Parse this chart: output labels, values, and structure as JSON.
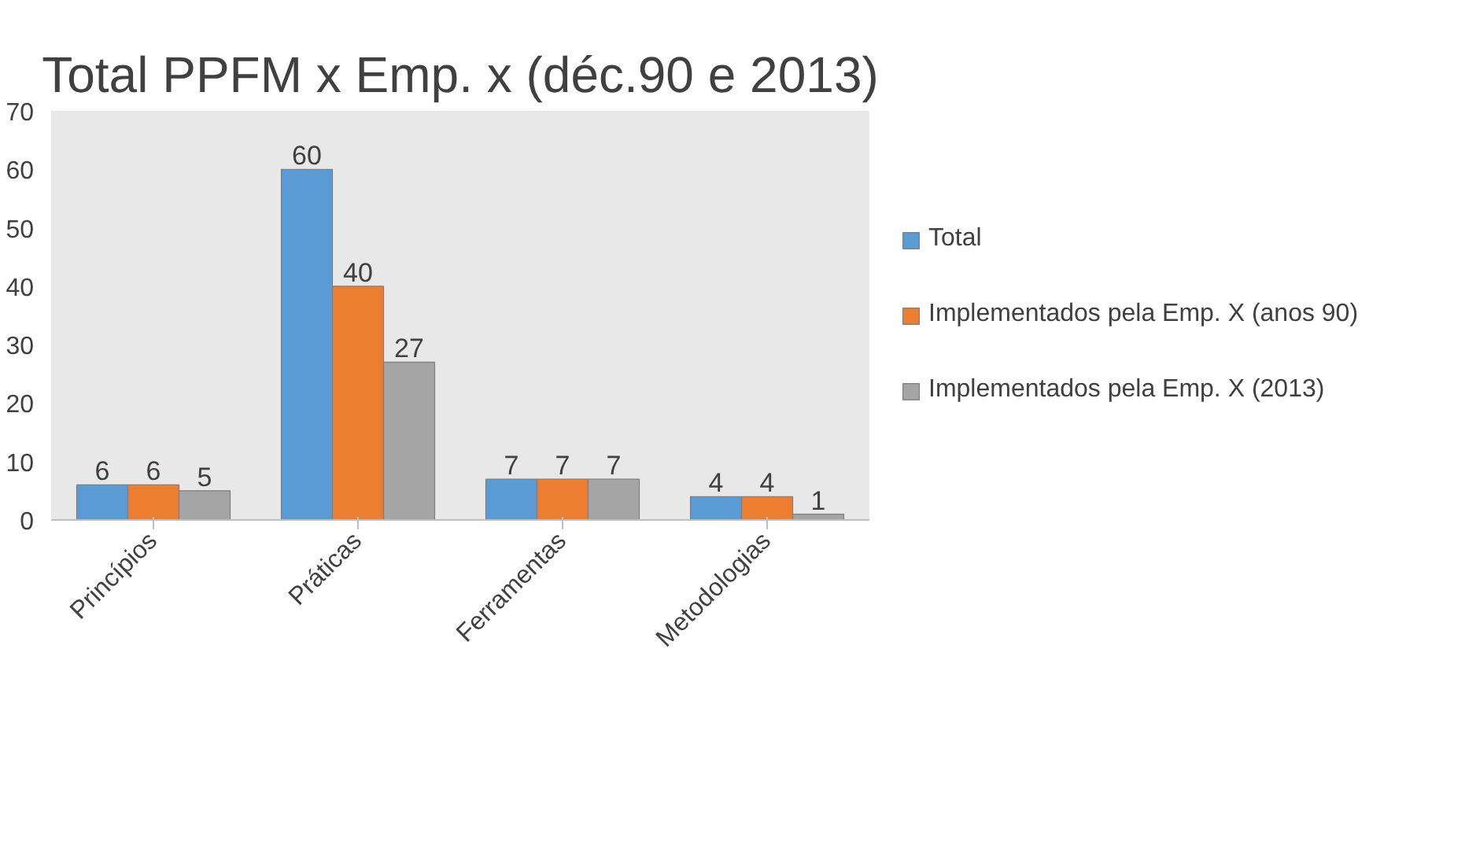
{
  "chart_data": {
    "type": "bar",
    "title": "Total PPFM x Emp. x (déc.90 e 2013)",
    "categories": [
      "Princípios",
      "Práticas",
      "Ferramentas",
      "Metodologias"
    ],
    "series": [
      {
        "name": "Total",
        "color": "#5b9bd5",
        "values": [
          6,
          60,
          7,
          4
        ]
      },
      {
        "name": "Implementados pela Emp. X (anos 90)",
        "color": "#ed7d31",
        "values": [
          6,
          40,
          7,
          4
        ]
      },
      {
        "name": "Implementados pela Emp. X (2013)",
        "color": "#a5a5a5",
        "values": [
          5,
          27,
          7,
          1
        ]
      }
    ],
    "ylim": [
      0,
      70
    ],
    "yticks": [
      0,
      10,
      20,
      30,
      40,
      50,
      60,
      70
    ],
    "grid": false,
    "legend": "right",
    "data_labels": true
  }
}
